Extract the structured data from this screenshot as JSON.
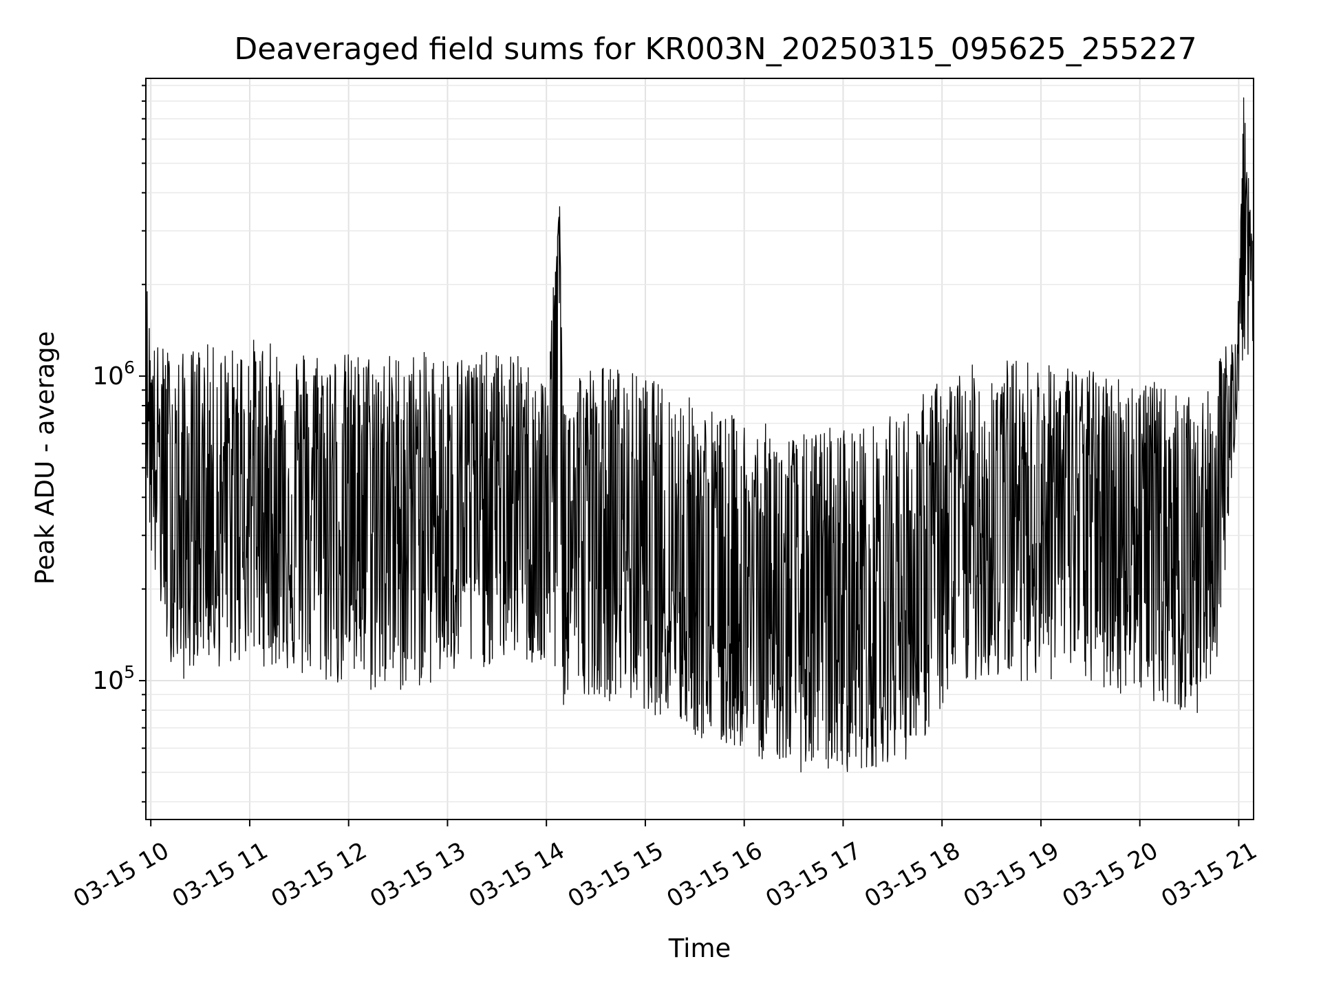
{
  "chart_data": {
    "type": "line",
    "title": "Deaveraged field sums for KR003N_20250315_095625_255227",
    "xlabel": "Time",
    "ylabel": "Peak ADU - average",
    "yscale": "log",
    "xlim": [
      "2025-03-15 09:57",
      "2025-03-15 21:09"
    ],
    "ylim": [
      35000,
      9500000
    ],
    "xticks": [
      {
        "value": "2025-03-15 10:00",
        "label": "03-15 10"
      },
      {
        "value": "2025-03-15 11:00",
        "label": "03-15 11"
      },
      {
        "value": "2025-03-15 12:00",
        "label": "03-15 12"
      },
      {
        "value": "2025-03-15 13:00",
        "label": "03-15 13"
      },
      {
        "value": "2025-03-15 14:00",
        "label": "03-15 14"
      },
      {
        "value": "2025-03-15 15:00",
        "label": "03-15 15"
      },
      {
        "value": "2025-03-15 16:00",
        "label": "03-15 16"
      },
      {
        "value": "2025-03-15 17:00",
        "label": "03-15 17"
      },
      {
        "value": "2025-03-15 18:00",
        "label": "03-15 18"
      },
      {
        "value": "2025-03-15 19:00",
        "label": "03-15 19"
      },
      {
        "value": "2025-03-15 20:00",
        "label": "03-15 20"
      },
      {
        "value": "2025-03-15 21:00",
        "label": "03-15 21"
      }
    ],
    "yticks": [
      {
        "value": 100000,
        "base": "10",
        "exponent": "5"
      },
      {
        "value": 1000000,
        "base": "10",
        "exponent": "6"
      }
    ],
    "grid": true,
    "color": "#000000",
    "series": [
      {
        "x": [
          "2025-03-15 09:57",
          "2025-03-15 10:00",
          "2025-03-15 10:10",
          "2025-03-15 10:20",
          "2025-03-15 10:30",
          "2025-03-15 10:40",
          "2025-03-15 10:50",
          "2025-03-15 11:00",
          "2025-03-15 11:10",
          "2025-03-15 11:20",
          "2025-03-15 11:30",
          "2025-03-15 11:40",
          "2025-03-15 11:50",
          "2025-03-15 12:00",
          "2025-03-15 12:10",
          "2025-03-15 12:20",
          "2025-03-15 12:30",
          "2025-03-15 12:40",
          "2025-03-15 12:50",
          "2025-03-15 13:00",
          "2025-03-15 13:10",
          "2025-03-15 13:20",
          "2025-03-15 13:30",
          "2025-03-15 13:40",
          "2025-03-15 13:50",
          "2025-03-15 14:00",
          "2025-03-15 14:08",
          "2025-03-15 14:10",
          "2025-03-15 14:20",
          "2025-03-15 14:30",
          "2025-03-15 14:40",
          "2025-03-15 14:50",
          "2025-03-15 15:00",
          "2025-03-15 15:10",
          "2025-03-15 15:20",
          "2025-03-15 15:30",
          "2025-03-15 15:40",
          "2025-03-15 15:50",
          "2025-03-15 16:00",
          "2025-03-15 16:10",
          "2025-03-15 16:20",
          "2025-03-15 16:30",
          "2025-03-15 16:40",
          "2025-03-15 16:50",
          "2025-03-15 17:00",
          "2025-03-15 17:10",
          "2025-03-15 17:20",
          "2025-03-15 17:30",
          "2025-03-15 17:40",
          "2025-03-15 17:50",
          "2025-03-15 18:00",
          "2025-03-15 18:10",
          "2025-03-15 18:20",
          "2025-03-15 18:30",
          "2025-03-15 18:40",
          "2025-03-15 18:50",
          "2025-03-15 19:00",
          "2025-03-15 19:10",
          "2025-03-15 19:20",
          "2025-03-15 19:30",
          "2025-03-15 19:40",
          "2025-03-15 19:50",
          "2025-03-15 20:00",
          "2025-03-15 20:10",
          "2025-03-15 20:20",
          "2025-03-15 20:30",
          "2025-03-15 20:40",
          "2025-03-15 20:50",
          "2025-03-15 21:00",
          "2025-03-15 21:03",
          "2025-03-15 21:06",
          "2025-03-15 21:09"
        ],
        "y": [
          2200000,
          700000,
          450000,
          250000,
          400000,
          350000,
          380000,
          420000,
          380000,
          360000,
          380000,
          400000,
          400000,
          400000,
          400000,
          380000,
          380000,
          400000,
          400000,
          400000,
          400000,
          420000,
          420000,
          440000,
          420000,
          350000,
          3600000,
          300000,
          320000,
          300000,
          310000,
          300000,
          280000,
          280000,
          250000,
          220000,
          180000,
          160000,
          180000,
          170000,
          160000,
          150000,
          160000,
          160000,
          170000,
          170000,
          170000,
          180000,
          190000,
          220000,
          240000,
          280000,
          320000,
          360000,
          380000,
          400000,
          400000,
          400000,
          400000,
          380000,
          380000,
          360000,
          360000,
          340000,
          300000,
          300000,
          280000,
          400000,
          1100000,
          8200000,
          2000000,
          2500000
        ],
        "y_low": [
          500000,
          250000,
          120000,
          100000,
          120000,
          110000,
          110000,
          120000,
          110000,
          110000,
          100000,
          100000,
          95000,
          95000,
          90000,
          90000,
          90000,
          95000,
          95000,
          100000,
          100000,
          110000,
          110000,
          120000,
          110000,
          100000,
          100000,
          80000,
          90000,
          90000,
          85000,
          85000,
          80000,
          75000,
          70000,
          65000,
          60000,
          60000,
          60000,
          55000,
          55000,
          50000,
          50000,
          50000,
          50000,
          50000,
          52000,
          55000,
          55000,
          65000,
          80000,
          90000,
          100000,
          100000,
          100000,
          100000,
          100000,
          100000,
          100000,
          95000,
          90000,
          90000,
          90000,
          85000,
          80000,
          75000,
          75000,
          150000,
          900000,
          1200000,
          1100000,
          1300000
        ],
        "y_high": [
          2200000,
          1300000,
          1250000,
          1200000,
          1300000,
          1250000,
          1250000,
          1350000,
          1300000,
          1250000,
          1250000,
          1250000,
          1200000,
          1200000,
          1200000,
          1200000,
          1200000,
          1200000,
          1200000,
          1200000,
          1200000,
          1200000,
          1200000,
          1200000,
          1100000,
          1000000,
          3600000,
          950000,
          1100000,
          1100000,
          1100000,
          1050000,
          1000000,
          950000,
          900000,
          850000,
          800000,
          750000,
          750000,
          700000,
          700000,
          650000,
          650000,
          700000,
          700000,
          700000,
          700000,
          750000,
          800000,
          900000,
          1000000,
          1050000,
          1100000,
          1100000,
          1150000,
          1150000,
          1100000,
          1100000,
          1100000,
          1050000,
          1050000,
          1000000,
          1000000,
          950000,
          900000,
          850000,
          850000,
          1200000,
          1800000,
          8200000,
          4500000,
          2500000
        ]
      }
    ]
  }
}
